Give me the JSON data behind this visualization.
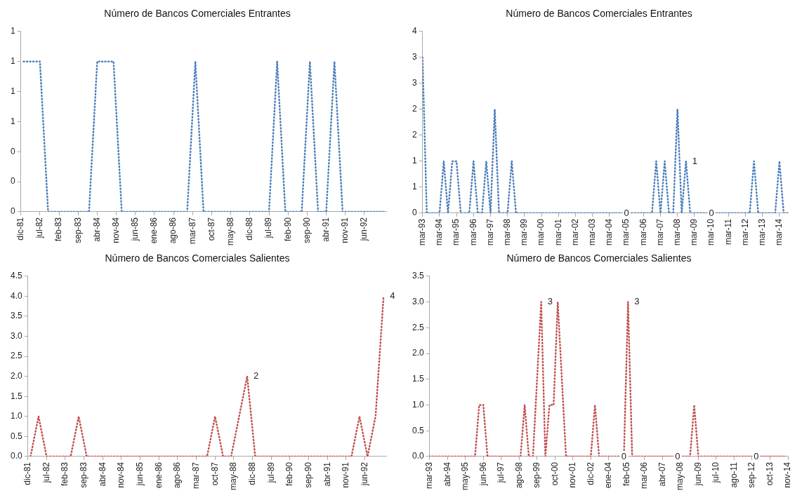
{
  "chart_data": [
    {
      "type": "line",
      "title": "Número de Bancos Comerciales Entrantes",
      "line_style": "dotted",
      "marker": "none",
      "legend": false,
      "xlim": [
        "1981-12",
        "1993-02"
      ],
      "xticks": [
        {
          "value": "1981-12",
          "label": "dic-81"
        },
        {
          "value": "1982-07",
          "label": "jul-82"
        },
        {
          "value": "1983-02",
          "label": "feb-83"
        },
        {
          "value": "1983-09",
          "label": "sep-83"
        },
        {
          "value": "1984-04",
          "label": "abr-84"
        },
        {
          "value": "1984-11",
          "label": "nov-84"
        },
        {
          "value": "1985-06",
          "label": "jun-85"
        },
        {
          "value": "1986-01",
          "label": "ene-86"
        },
        {
          "value": "1986-08",
          "label": "ago-86"
        },
        {
          "value": "1987-03",
          "label": "mar-87"
        },
        {
          "value": "1987-10",
          "label": "oct-87"
        },
        {
          "value": "1988-05",
          "label": "may-88"
        },
        {
          "value": "1988-12",
          "label": "dic-88"
        },
        {
          "value": "1989-07",
          "label": "jul-89"
        },
        {
          "value": "1990-02",
          "label": "feb-90"
        },
        {
          "value": "1990-09",
          "label": "sep-90"
        },
        {
          "value": "1991-04",
          "label": "abr-91"
        },
        {
          "value": "1991-11",
          "label": "nov-91"
        },
        {
          "value": "1992-06",
          "label": "jun-92"
        }
      ],
      "ylim": [
        0,
        1.2
      ],
      "yticks": [
        0,
        {
          "value": 0.2,
          "label": "0"
        },
        {
          "value": 0.4,
          "label": "0"
        },
        {
          "value": 0.6,
          "label": "1"
        },
        {
          "value": 0.8,
          "label": "1"
        },
        1,
        {
          "value": 1.2,
          "label": "1"
        }
      ],
      "series": [
        {
          "color": "#4a7ebb",
          "x": [
            "1982-01",
            "1982-04",
            "1982-07",
            "1982-10",
            "1983-01",
            "1983-04",
            "1983-07",
            "1983-10",
            "1984-01",
            "1984-04",
            "1984-07",
            "1984-10",
            "1985-01",
            "1985-04",
            "1985-07",
            "1985-10",
            "1986-01",
            "1986-04",
            "1986-07",
            "1986-10",
            "1987-01",
            "1987-04",
            "1987-07",
            "1987-10",
            "1988-01",
            "1988-04",
            "1988-07",
            "1988-10",
            "1989-01",
            "1989-04",
            "1989-07",
            "1989-10",
            "1990-01",
            "1990-04",
            "1990-07",
            "1990-10",
            "1991-01",
            "1991-04",
            "1991-07",
            "1991-10",
            "1992-01",
            "1992-04",
            "1992-07",
            "1992-10",
            "1993-01"
          ],
          "values": [
            1,
            1,
            1,
            0,
            0,
            0,
            0,
            0,
            0,
            1,
            1,
            1,
            0,
            0,
            0,
            0,
            0,
            0,
            0,
            0,
            0,
            1,
            0,
            0,
            0,
            0,
            0,
            0,
            0,
            0,
            0,
            1,
            0,
            0,
            0,
            1,
            0,
            0,
            1,
            0,
            0,
            0,
            0,
            0,
            0
          ]
        }
      ]
    },
    {
      "type": "line",
      "title": "Número de Bancos Comerciales Entrantes",
      "line_style": "dotted",
      "marker": "none",
      "legend": false,
      "xlim": [
        "1993-03",
        "2014-09"
      ],
      "xticks": [
        {
          "value": "1993-03",
          "label": "mar-93"
        },
        {
          "value": "1994-03",
          "label": "mar-94"
        },
        {
          "value": "1995-03",
          "label": "mar-95"
        },
        {
          "value": "1996-03",
          "label": "mar-96"
        },
        {
          "value": "1997-03",
          "label": "mar-97"
        },
        {
          "value": "1998-03",
          "label": "mar-98"
        },
        {
          "value": "1999-03",
          "label": "mar-99"
        },
        {
          "value": "2000-03",
          "label": "mar-00"
        },
        {
          "value": "2001-03",
          "label": "mar-01"
        },
        {
          "value": "2002-03",
          "label": "mar-02"
        },
        {
          "value": "2003-03",
          "label": "mar-03"
        },
        {
          "value": "2004-03",
          "label": "mar-04"
        },
        {
          "value": "2005-03",
          "label": "mar-05"
        },
        {
          "value": "2006-03",
          "label": "mar-06"
        },
        {
          "value": "2007-03",
          "label": "mar-07"
        },
        {
          "value": "2008-03",
          "label": "mar-08"
        },
        {
          "value": "2009-03",
          "label": "mar-09"
        },
        {
          "value": "2010-03",
          "label": "mar-10"
        },
        {
          "value": "2011-03",
          "label": "mar-11"
        },
        {
          "value": "2012-03",
          "label": "mar-12"
        },
        {
          "value": "2013-03",
          "label": "mar-13"
        },
        {
          "value": "2014-03",
          "label": "mar-14"
        }
      ],
      "ylim": [
        0,
        3.5
      ],
      "yticks": [
        0,
        {
          "value": 0.5,
          "label": "1"
        },
        1,
        {
          "value": 1.5,
          "label": "2"
        },
        2,
        {
          "value": 2.5,
          "label": "3"
        },
        3,
        {
          "value": 3.5,
          "label": "4"
        }
      ],
      "series": [
        {
          "color": "#4a7ebb",
          "x": [
            "1993-03",
            "1993-06",
            "1993-09",
            "1993-12",
            "1994-03",
            "1994-06",
            "1994-09",
            "1994-12",
            "1995-03",
            "1995-06",
            "1995-09",
            "1995-12",
            "1996-03",
            "1996-06",
            "1996-09",
            "1996-12",
            "1997-03",
            "1997-06",
            "1997-09",
            "1997-12",
            "1998-03",
            "1998-06",
            "1998-09",
            "1998-12",
            "1999-03",
            "1999-06",
            "1999-09",
            "1999-12",
            "2000-03",
            "2000-06",
            "2000-09",
            "2000-12",
            "2001-03",
            "2001-06",
            "2001-09",
            "2001-12",
            "2002-03",
            "2002-06",
            "2002-09",
            "2002-12",
            "2003-03",
            "2003-06",
            "2003-09",
            "2003-12",
            "2004-03",
            "2004-06",
            "2004-09",
            "2004-12",
            "2005-03",
            "2005-06",
            "2005-09",
            "2005-12",
            "2006-03",
            "2006-06",
            "2006-09",
            "2006-12",
            "2007-03",
            "2007-06",
            "2007-09",
            "2007-12",
            "2008-03",
            "2008-06",
            "2008-09",
            "2008-12",
            "2009-03",
            "2009-06",
            "2009-09",
            "2009-12",
            "2010-03",
            "2010-06",
            "2010-09",
            "2010-12",
            "2011-03",
            "2011-06",
            "2011-09",
            "2011-12",
            "2012-03",
            "2012-06",
            "2012-09",
            "2012-12",
            "2013-03",
            "2013-06",
            "2013-09",
            "2013-12",
            "2014-03",
            "2014-06",
            "2014-09"
          ],
          "values": [
            3,
            0,
            0,
            0,
            0,
            1,
            0,
            1,
            1,
            0,
            0,
            0,
            1,
            0,
            0,
            1,
            0,
            2,
            0,
            0,
            0,
            1,
            0,
            0,
            0,
            0,
            0,
            0,
            0,
            0,
            0,
            0,
            0,
            0,
            0,
            0,
            0,
            0,
            0,
            0,
            0,
            0,
            0,
            0,
            0,
            0,
            0,
            0,
            0,
            0,
            0,
            0,
            0,
            0,
            0,
            1,
            0,
            1,
            0,
            0,
            2,
            0,
            1,
            0,
            0,
            0,
            0,
            0,
            0,
            0,
            0,
            0,
            0,
            0,
            0,
            0,
            0,
            0,
            1,
            0,
            0,
            0,
            0,
            0,
            1,
            0,
            0
          ],
          "value_labels": [
            null,
            null,
            null,
            null,
            null,
            null,
            null,
            null,
            null,
            null,
            null,
            null,
            null,
            null,
            null,
            null,
            null,
            null,
            null,
            null,
            null,
            null,
            null,
            null,
            null,
            null,
            null,
            null,
            null,
            null,
            null,
            null,
            null,
            null,
            null,
            null,
            null,
            null,
            null,
            null,
            null,
            null,
            null,
            null,
            null,
            null,
            null,
            null,
            "0",
            null,
            null,
            null,
            null,
            null,
            null,
            null,
            null,
            null,
            null,
            null,
            null,
            null,
            "1",
            null,
            null,
            null,
            null,
            null,
            "0",
            null,
            null,
            null,
            null,
            null,
            null,
            null,
            null,
            null,
            null,
            null,
            null,
            null,
            null,
            null,
            null,
            null,
            null
          ]
        }
      ]
    },
    {
      "type": "line",
      "title": "Número de Bancos Comerciales Salientes",
      "line_style": "dotted",
      "marker": "none",
      "legend": false,
      "xlim": [
        "1981-12",
        "1993-02"
      ],
      "xticks": [
        {
          "value": "1981-12",
          "label": "dic-81"
        },
        {
          "value": "1982-07",
          "label": "jul-82"
        },
        {
          "value": "1983-02",
          "label": "feb-83"
        },
        {
          "value": "1983-09",
          "label": "sep-83"
        },
        {
          "value": "1984-04",
          "label": "abr-84"
        },
        {
          "value": "1984-11",
          "label": "nov-84"
        },
        {
          "value": "1985-06",
          "label": "jun-85"
        },
        {
          "value": "1986-01",
          "label": "ene-86"
        },
        {
          "value": "1986-08",
          "label": "ago-86"
        },
        {
          "value": "1987-03",
          "label": "mar-87"
        },
        {
          "value": "1987-10",
          "label": "oct-87"
        },
        {
          "value": "1988-05",
          "label": "may-88"
        },
        {
          "value": "1988-12",
          "label": "dic-88"
        },
        {
          "value": "1989-07",
          "label": "jul-89"
        },
        {
          "value": "1990-02",
          "label": "feb-90"
        },
        {
          "value": "1990-09",
          "label": "sep-90"
        },
        {
          "value": "1991-04",
          "label": "abr-91"
        },
        {
          "value": "1991-11",
          "label": "nov-91"
        },
        {
          "value": "1992-06",
          "label": "jun-92"
        }
      ],
      "ylim": [
        0,
        4.5
      ],
      "yticks": [
        {
          "value": 0,
          "label": "0.0"
        },
        0.5,
        {
          "value": 1,
          "label": "1.0"
        },
        1.5,
        {
          "value": 2,
          "label": "2.0"
        },
        2.5,
        {
          "value": 3,
          "label": "3.0"
        },
        3.5,
        {
          "value": 4,
          "label": "4.0"
        },
        4.5
      ],
      "series": [
        {
          "color": "#c0504d",
          "x": [
            "1982-01",
            "1982-04",
            "1982-07",
            "1982-10",
            "1983-01",
            "1983-04",
            "1983-07",
            "1983-10",
            "1984-01",
            "1984-04",
            "1984-07",
            "1984-10",
            "1985-01",
            "1985-04",
            "1985-07",
            "1985-10",
            "1986-01",
            "1986-04",
            "1986-07",
            "1986-10",
            "1987-01",
            "1987-04",
            "1987-07",
            "1987-10",
            "1988-01",
            "1988-04",
            "1988-07",
            "1988-10",
            "1989-01",
            "1989-04",
            "1989-07",
            "1989-10",
            "1990-01",
            "1990-04",
            "1990-07",
            "1990-10",
            "1991-01",
            "1991-04",
            "1991-07",
            "1991-10",
            "1992-01",
            "1992-04",
            "1992-07",
            "1992-10",
            "1993-01"
          ],
          "values": [
            0,
            1,
            0,
            0,
            0,
            0,
            1,
            0,
            0,
            0,
            0,
            0,
            0,
            0,
            0,
            0,
            0,
            0,
            0,
            0,
            0,
            0,
            0,
            1,
            0,
            0,
            1,
            2,
            0,
            0,
            0,
            0,
            0,
            0,
            0,
            0,
            0,
            0,
            0,
            0,
            0,
            1,
            0,
            1,
            4
          ],
          "value_labels": [
            null,
            null,
            null,
            null,
            null,
            null,
            null,
            null,
            null,
            null,
            null,
            null,
            null,
            null,
            null,
            null,
            null,
            null,
            null,
            null,
            null,
            null,
            null,
            null,
            null,
            null,
            null,
            "2",
            null,
            null,
            null,
            null,
            null,
            null,
            null,
            null,
            null,
            null,
            null,
            null,
            null,
            null,
            null,
            null,
            "4"
          ]
        }
      ]
    },
    {
      "type": "line",
      "title": "Número de Bancos Comerciales Salientes",
      "line_style": "dotted",
      "marker": "none",
      "legend": false,
      "xlim": [
        "1993-03",
        "2014-11"
      ],
      "xticks": [
        {
          "value": "1993-03",
          "label": "mar-93"
        },
        {
          "value": "1994-04",
          "label": "abr-94"
        },
        {
          "value": "1995-05",
          "label": "may-95"
        },
        {
          "value": "1996-06",
          "label": "jun-96"
        },
        {
          "value": "1997-07",
          "label": "jul-97"
        },
        {
          "value": "1998-08",
          "label": "ago-98"
        },
        {
          "value": "1999-09",
          "label": "sep-99"
        },
        {
          "value": "2000-10",
          "label": "oct-00"
        },
        {
          "value": "2001-11",
          "label": "nov-01"
        },
        {
          "value": "2002-12",
          "label": "dic-02"
        },
        {
          "value": "2004-01",
          "label": "ene-04"
        },
        {
          "value": "2005-02",
          "label": "feb-05"
        },
        {
          "value": "2006-03",
          "label": "mar-06"
        },
        {
          "value": "2007-04",
          "label": "abr-07"
        },
        {
          "value": "2008-05",
          "label": "may-08"
        },
        {
          "value": "2009-06",
          "label": "jun-09"
        },
        {
          "value": "2010-07",
          "label": "jul-10"
        },
        {
          "value": "2011-08",
          "label": "ago-11"
        },
        {
          "value": "2012-09",
          "label": "sep-12"
        },
        {
          "value": "2013-10",
          "label": "oct-13"
        },
        {
          "value": "2014-11",
          "label": "nov-14"
        }
      ],
      "ylim": [
        0,
        3.5
      ],
      "yticks": [
        {
          "value": 0,
          "label": "0.0"
        },
        0.5,
        {
          "value": 1,
          "label": "1.0"
        },
        1.5,
        {
          "value": 2,
          "label": "2.0"
        },
        2.5,
        {
          "value": 3,
          "label": "3.0"
        },
        3.5
      ],
      "series": [
        {
          "color": "#c0504d",
          "x": [
            "1993-03",
            "1993-06",
            "1993-09",
            "1993-12",
            "1994-03",
            "1994-06",
            "1994-09",
            "1994-12",
            "1995-03",
            "1995-06",
            "1995-09",
            "1995-12",
            "1996-03",
            "1996-06",
            "1996-09",
            "1996-12",
            "1997-03",
            "1997-06",
            "1997-09",
            "1997-12",
            "1998-03",
            "1998-06",
            "1998-09",
            "1998-12",
            "1999-03",
            "1999-06",
            "1999-09",
            "1999-12",
            "2000-03",
            "2000-06",
            "2000-09",
            "2000-12",
            "2001-03",
            "2001-06",
            "2001-09",
            "2001-12",
            "2002-03",
            "2002-06",
            "2002-09",
            "2002-12",
            "2003-03",
            "2003-06",
            "2003-09",
            "2003-12",
            "2004-03",
            "2004-06",
            "2004-09",
            "2004-12",
            "2005-03",
            "2005-06",
            "2005-09",
            "2005-12",
            "2006-03",
            "2006-06",
            "2006-09",
            "2006-12",
            "2007-03",
            "2007-06",
            "2007-09",
            "2007-12",
            "2008-03",
            "2008-06",
            "2008-09",
            "2008-12",
            "2009-03",
            "2009-06",
            "2009-09",
            "2009-12",
            "2010-03",
            "2010-06",
            "2010-09",
            "2010-12",
            "2011-03",
            "2011-06",
            "2011-09",
            "2011-12",
            "2012-03",
            "2012-06",
            "2012-09",
            "2012-12",
            "2013-03",
            "2013-06",
            "2013-09",
            "2013-12",
            "2014-03",
            "2014-06",
            "2014-09"
          ],
          "values": [
            0,
            0,
            0,
            0,
            0,
            0,
            0,
            0,
            0,
            0,
            0,
            0,
            1,
            1,
            0,
            0,
            0,
            0,
            0,
            0,
            0,
            0,
            0,
            1,
            0,
            0,
            1.5,
            3,
            0,
            1,
            1,
            3,
            1.5,
            0,
            0,
            0,
            0,
            0,
            0,
            0,
            1,
            0,
            0,
            0,
            0,
            0,
            0,
            0,
            3,
            0,
            0,
            0,
            0,
            0,
            0,
            0,
            0,
            0,
            0,
            0,
            0,
            0,
            0,
            0,
            1,
            0,
            0,
            0,
            0,
            0,
            0,
            0,
            0,
            0,
            0,
            0,
            0,
            0,
            0,
            0,
            0,
            0,
            0,
            0,
            0,
            0,
            0
          ],
          "value_labels": [
            null,
            null,
            null,
            null,
            null,
            null,
            null,
            null,
            null,
            null,
            null,
            null,
            null,
            null,
            null,
            null,
            null,
            null,
            null,
            null,
            null,
            null,
            null,
            null,
            null,
            null,
            null,
            "3",
            null,
            null,
            null,
            null,
            null,
            null,
            null,
            null,
            null,
            null,
            null,
            null,
            null,
            null,
            null,
            null,
            null,
            null,
            null,
            "0",
            "3",
            null,
            null,
            null,
            null,
            null,
            null,
            null,
            null,
            null,
            null,
            null,
            "0",
            null,
            null,
            null,
            null,
            null,
            null,
            null,
            null,
            null,
            null,
            null,
            null,
            null,
            null,
            null,
            null,
            null,
            null,
            "0",
            null,
            null,
            null,
            null,
            null,
            null,
            null
          ]
        }
      ]
    }
  ]
}
